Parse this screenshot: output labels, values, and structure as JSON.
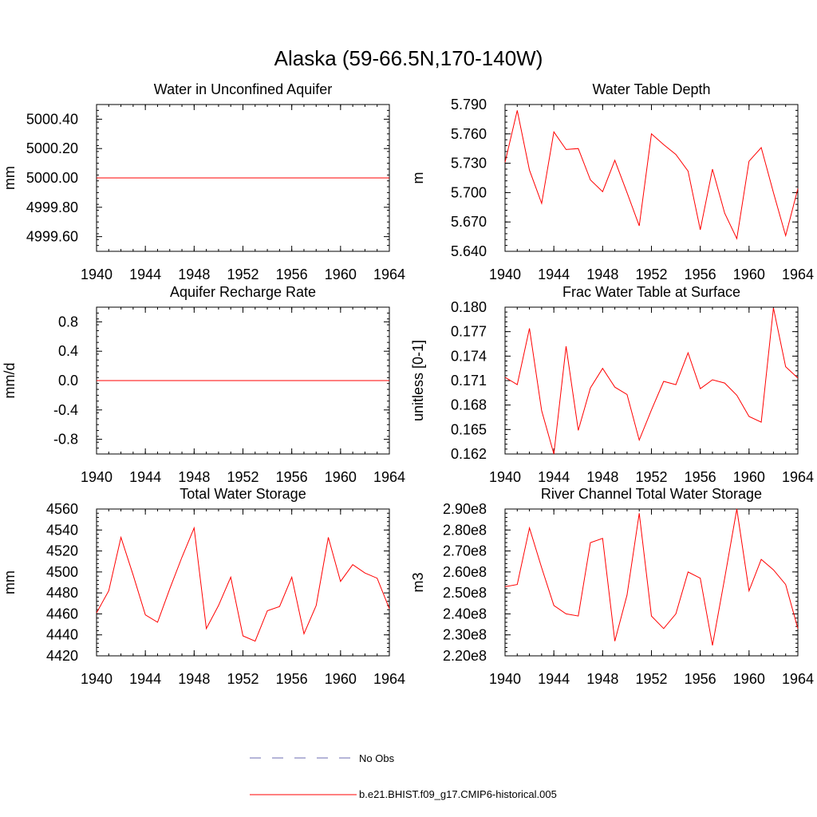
{
  "page_title": "Alaska (59-66.5N,170-140W)",
  "legend": {
    "entries": [
      {
        "label": "No Obs",
        "color": "#6b6bb0",
        "style": "dashed"
      },
      {
        "label": "b.e21.BHIST.f09_g17.CMIP6-historical.005",
        "color": "#ff0000",
        "style": "solid"
      }
    ]
  },
  "chart_data": [
    {
      "type": "line",
      "title": "Water in Unconfined Aquifer",
      "ylabel": "mm",
      "xlim": [
        1940,
        1964
      ],
      "ylim": [
        4999.5,
        5000.5
      ],
      "xticks": [
        "1940",
        "1944",
        "1948",
        "1952",
        "1956",
        "1960",
        "1964"
      ],
      "yticks": [
        "4999.60",
        "4999.80",
        "5000.00",
        "5000.20",
        "5000.40"
      ],
      "series": [
        {
          "color": "#ff0000",
          "x": [
            1940,
            1941,
            1942,
            1943,
            1944,
            1945,
            1946,
            1947,
            1948,
            1949,
            1950,
            1951,
            1952,
            1953,
            1954,
            1955,
            1956,
            1957,
            1958,
            1959,
            1960,
            1961,
            1962,
            1963,
            1964
          ],
          "y": [
            5000,
            5000,
            5000,
            5000,
            5000,
            5000,
            5000,
            5000,
            5000,
            5000,
            5000,
            5000,
            5000,
            5000,
            5000,
            5000,
            5000,
            5000,
            5000,
            5000,
            5000,
            5000,
            5000,
            5000,
            5000
          ]
        }
      ]
    },
    {
      "type": "line",
      "title": "Water Table Depth",
      "ylabel": "m",
      "xlim": [
        1940,
        1964
      ],
      "ylim": [
        5.64,
        5.79
      ],
      "xticks": [
        "1940",
        "1944",
        "1948",
        "1952",
        "1956",
        "1960",
        "1964"
      ],
      "yticks": [
        "5.640",
        "5.670",
        "5.700",
        "5.730",
        "5.760",
        "5.790"
      ],
      "series": [
        {
          "color": "#ff0000",
          "x": [
            1940,
            1941,
            1942,
            1943,
            1944,
            1945,
            1946,
            1947,
            1948,
            1949,
            1950,
            1951,
            1952,
            1953,
            1954,
            1955,
            1956,
            1957,
            1958,
            1959,
            1960,
            1961,
            1962,
            1963,
            1964
          ],
          "y": [
            5.731,
            5.784,
            5.723,
            5.689,
            5.762,
            5.744,
            5.745,
            5.713,
            5.701,
            5.733,
            5.7,
            5.666,
            5.76,
            5.749,
            5.739,
            5.722,
            5.662,
            5.724,
            5.679,
            5.653,
            5.732,
            5.746,
            5.7,
            5.656,
            5.704
          ]
        }
      ]
    },
    {
      "type": "line",
      "title": "Aquifer Recharge Rate",
      "ylabel": "mm/d",
      "xlim": [
        1940,
        1964
      ],
      "ylim": [
        -1.0,
        1.0
      ],
      "xticks": [
        "1940",
        "1944",
        "1948",
        "1952",
        "1956",
        "1960",
        "1964"
      ],
      "yticks": [
        "-0.8",
        "-0.4",
        "0.0",
        "0.4",
        "0.8"
      ],
      "series": [
        {
          "color": "#ff0000",
          "x": [
            1940,
            1941,
            1942,
            1943,
            1944,
            1945,
            1946,
            1947,
            1948,
            1949,
            1950,
            1951,
            1952,
            1953,
            1954,
            1955,
            1956,
            1957,
            1958,
            1959,
            1960,
            1961,
            1962,
            1963,
            1964
          ],
          "y": [
            0,
            0,
            0,
            0,
            0,
            0,
            0,
            0,
            0,
            0,
            0,
            0,
            0,
            0,
            0,
            0,
            0,
            0,
            0,
            0,
            0,
            0,
            0,
            0,
            0
          ]
        }
      ]
    },
    {
      "type": "line",
      "title": "Frac Water Table at Surface",
      "ylabel": "unitless [0-1]",
      "xlim": [
        1940,
        1964
      ],
      "ylim": [
        0.162,
        0.18
      ],
      "xticks": [
        "1940",
        "1944",
        "1948",
        "1952",
        "1956",
        "1960",
        "1964"
      ],
      "yticks": [
        "0.162",
        "0.165",
        "0.168",
        "0.171",
        "0.174",
        "0.177",
        "0.180"
      ],
      "series": [
        {
          "color": "#ff0000",
          "x": [
            1940,
            1941,
            1942,
            1943,
            1944,
            1945,
            1946,
            1947,
            1948,
            1949,
            1950,
            1951,
            1952,
            1953,
            1954,
            1955,
            1956,
            1957,
            1958,
            1959,
            1960,
            1961,
            1962,
            1963,
            1964
          ],
          "y": [
            0.1714,
            0.1705,
            0.1774,
            0.1673,
            0.162,
            0.1752,
            0.1649,
            0.1701,
            0.1725,
            0.1702,
            0.1693,
            0.1637,
            0.1674,
            0.1709,
            0.1705,
            0.1744,
            0.17,
            0.1711,
            0.1707,
            0.1692,
            0.1666,
            0.1659,
            0.1799,
            0.1727,
            0.1713
          ]
        }
      ]
    },
    {
      "type": "line",
      "title": "Total Water Storage",
      "ylabel": "mm",
      "xlim": [
        1940,
        1964
      ],
      "ylim": [
        4420,
        4560
      ],
      "xticks": [
        "1940",
        "1944",
        "1948",
        "1952",
        "1956",
        "1960",
        "1964"
      ],
      "yticks": [
        "4420",
        "4440",
        "4460",
        "4480",
        "4500",
        "4520",
        "4540",
        "4560"
      ],
      "series": [
        {
          "color": "#ff0000",
          "x": [
            1940,
            1941,
            1942,
            1943,
            1944,
            1945,
            1946,
            1947,
            1948,
            1949,
            1950,
            1951,
            1952,
            1953,
            1954,
            1955,
            1956,
            1957,
            1958,
            1959,
            1960,
            1961,
            1962,
            1963,
            1964
          ],
          "y": [
            4461,
            4482,
            4533,
            4497,
            4459,
            4452,
            4484,
            4514,
            4542,
            4446,
            4468,
            4495,
            4439,
            4434,
            4463,
            4467,
            4495,
            4441,
            4468,
            4533,
            4491,
            4507,
            4499,
            4494,
            4465
          ]
        }
      ]
    },
    {
      "type": "line",
      "title": "River Channel Total Water Storage",
      "ylabel": "m3",
      "xlim": [
        1940,
        1964
      ],
      "ylim": [
        220000000.0,
        290000000.0
      ],
      "xticks": [
        "1940",
        "1944",
        "1948",
        "1952",
        "1956",
        "1960",
        "1964"
      ],
      "yticks": [
        "2.20e8",
        "2.30e8",
        "2.40e8",
        "2.50e8",
        "2.60e8",
        "2.70e8",
        "2.80e8",
        "2.90e8"
      ],
      "series": [
        {
          "color": "#ff0000",
          "x": [
            1940,
            1941,
            1942,
            1943,
            1944,
            1945,
            1946,
            1947,
            1948,
            1949,
            1950,
            1951,
            1952,
            1953,
            1954,
            1955,
            1956,
            1957,
            1958,
            1959,
            1960,
            1961,
            1962,
            1963,
            1964
          ],
          "y": [
            253000000.0,
            254000000.0,
            281000000.0,
            262000000.0,
            244000000.0,
            240000000.0,
            239000000.0,
            274000000.0,
            276000000.0,
            227000000.0,
            249000000.0,
            288000000.0,
            239000000.0,
            233000000.0,
            240000000.0,
            260000000.0,
            257000000.0,
            225000000.0,
            257000000.0,
            290000000.0,
            251000000.0,
            266000000.0,
            261000000.0,
            254000000.0,
            233000000.0
          ]
        }
      ]
    }
  ]
}
